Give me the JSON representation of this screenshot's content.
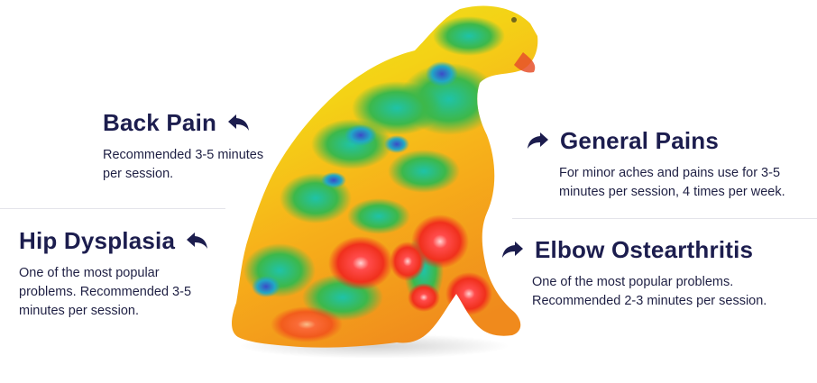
{
  "sections": {
    "back_pain": {
      "title": "Back Pain",
      "description": "Recommended 3-5 minutes per session.",
      "icon": "reply-arrow-left-icon"
    },
    "hip_dysplasia": {
      "title": "Hip Dysplasia",
      "description": "One of the most popular problems. Recommended 3-5 minutes per session.",
      "icon": "reply-arrow-left-icon"
    },
    "general_pains": {
      "title": "General Pains",
      "description": "For minor aches and pains use for 3-5 minutes per session, 4 times per week.",
      "icon": "forward-arrow-right-icon"
    },
    "elbow_osteoarthritis": {
      "title": "Elbow Ostearthritis",
      "description": "One of the most popular problems. Recommended 2-3 minutes per session.",
      "icon": "forward-arrow-right-icon"
    }
  },
  "colors": {
    "heading": "#1c1d4e",
    "text": "#1f2044",
    "divider": "#e4e4ea"
  },
  "image": {
    "subject": "dog-thermal-heatmap-image"
  }
}
